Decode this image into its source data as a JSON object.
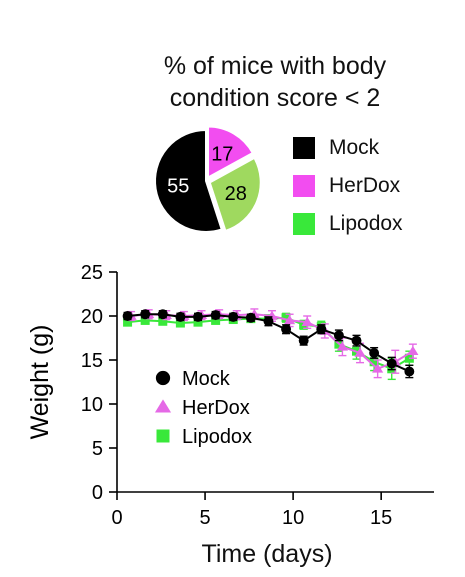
{
  "pie": {
    "title_line1": "% of mice with body",
    "title_line2": "condition score < 2",
    "slices": [
      {
        "label": "55",
        "value": 55,
        "color": "#000000",
        "text_color": "#ffffff"
      },
      {
        "label": "17",
        "value": 17,
        "color": "#f24df0",
        "text_color": "#000000"
      },
      {
        "label": "28",
        "value": 28,
        "color": "#9fd95f",
        "text_color": "#000000"
      }
    ],
    "legend": [
      {
        "label": "Mock",
        "color": "#000000"
      },
      {
        "label": "HerDox",
        "color": "#f24df0"
      },
      {
        "label": "Lipodox",
        "color": "#39e83a"
      }
    ]
  },
  "chart_data": {
    "type": "line",
    "xlabel": "Time (days)",
    "ylabel": "Weight (g)",
    "xlim": [
      0,
      18
    ],
    "ylim": [
      0,
      25
    ],
    "xticks": [
      0,
      5,
      10,
      15
    ],
    "yticks": [
      0,
      5,
      10,
      15,
      20,
      25
    ],
    "legend_position": "lower-left",
    "series": [
      {
        "name": "Lipodox",
        "color": "#39e83a",
        "marker": "square",
        "x": [
          0.6,
          1.6,
          2.6,
          3.6,
          4.6,
          5.6,
          6.6,
          7.6,
          8.6,
          9.6,
          10.6,
          11.6,
          12.6,
          13.6,
          14.6,
          15.6,
          16.6
        ],
        "y": [
          19.3,
          19.5,
          19.4,
          19.2,
          19.3,
          19.5,
          19.6,
          19.7,
          19.7,
          19.8,
          19.0,
          18.8,
          16.8,
          16.0,
          14.8,
          14.0,
          15.2
        ],
        "err": [
          0.4,
          0.4,
          0.4,
          0.4,
          0.4,
          0.4,
          0.4,
          0.4,
          0.4,
          0.5,
          0.5,
          0.6,
          0.8,
          0.9,
          1.0,
          1.2,
          0.8
        ]
      },
      {
        "name": "HerDox",
        "color": "#e569e6",
        "marker": "triangle",
        "x": [
          0.8,
          1.8,
          2.8,
          3.8,
          4.8,
          5.8,
          6.8,
          7.8,
          8.8,
          9.8,
          10.8,
          11.8,
          12.8,
          13.8,
          14.8,
          15.8,
          16.8
        ],
        "y": [
          20.0,
          20.2,
          20.1,
          20.0,
          20.1,
          20.2,
          20.1,
          20.2,
          20.0,
          19.5,
          19.3,
          18.3,
          16.5,
          15.8,
          14.0,
          14.8,
          16.0
        ],
        "err": [
          0.5,
          0.5,
          0.5,
          0.5,
          0.5,
          0.5,
          0.5,
          0.6,
          0.6,
          0.7,
          0.7,
          0.8,
          1.0,
          1.1,
          1.0,
          1.3,
          0.8
        ]
      },
      {
        "name": "Mock",
        "color": "#000000",
        "marker": "circle",
        "x": [
          0.6,
          1.6,
          2.6,
          3.6,
          4.6,
          5.6,
          6.6,
          7.6,
          8.6,
          9.6,
          10.6,
          11.6,
          12.6,
          13.6,
          14.6,
          15.6,
          16.6
        ],
        "y": [
          20.0,
          20.2,
          20.2,
          19.9,
          19.9,
          20.1,
          19.9,
          19.8,
          19.4,
          18.5,
          17.2,
          18.5,
          17.8,
          17.2,
          15.8,
          14.6,
          13.7
        ],
        "err": [
          0.4,
          0.4,
          0.4,
          0.4,
          0.4,
          0.4,
          0.4,
          0.4,
          0.5,
          0.5,
          0.5,
          0.5,
          0.6,
          0.6,
          0.6,
          0.7,
          0.7
        ]
      }
    ]
  }
}
